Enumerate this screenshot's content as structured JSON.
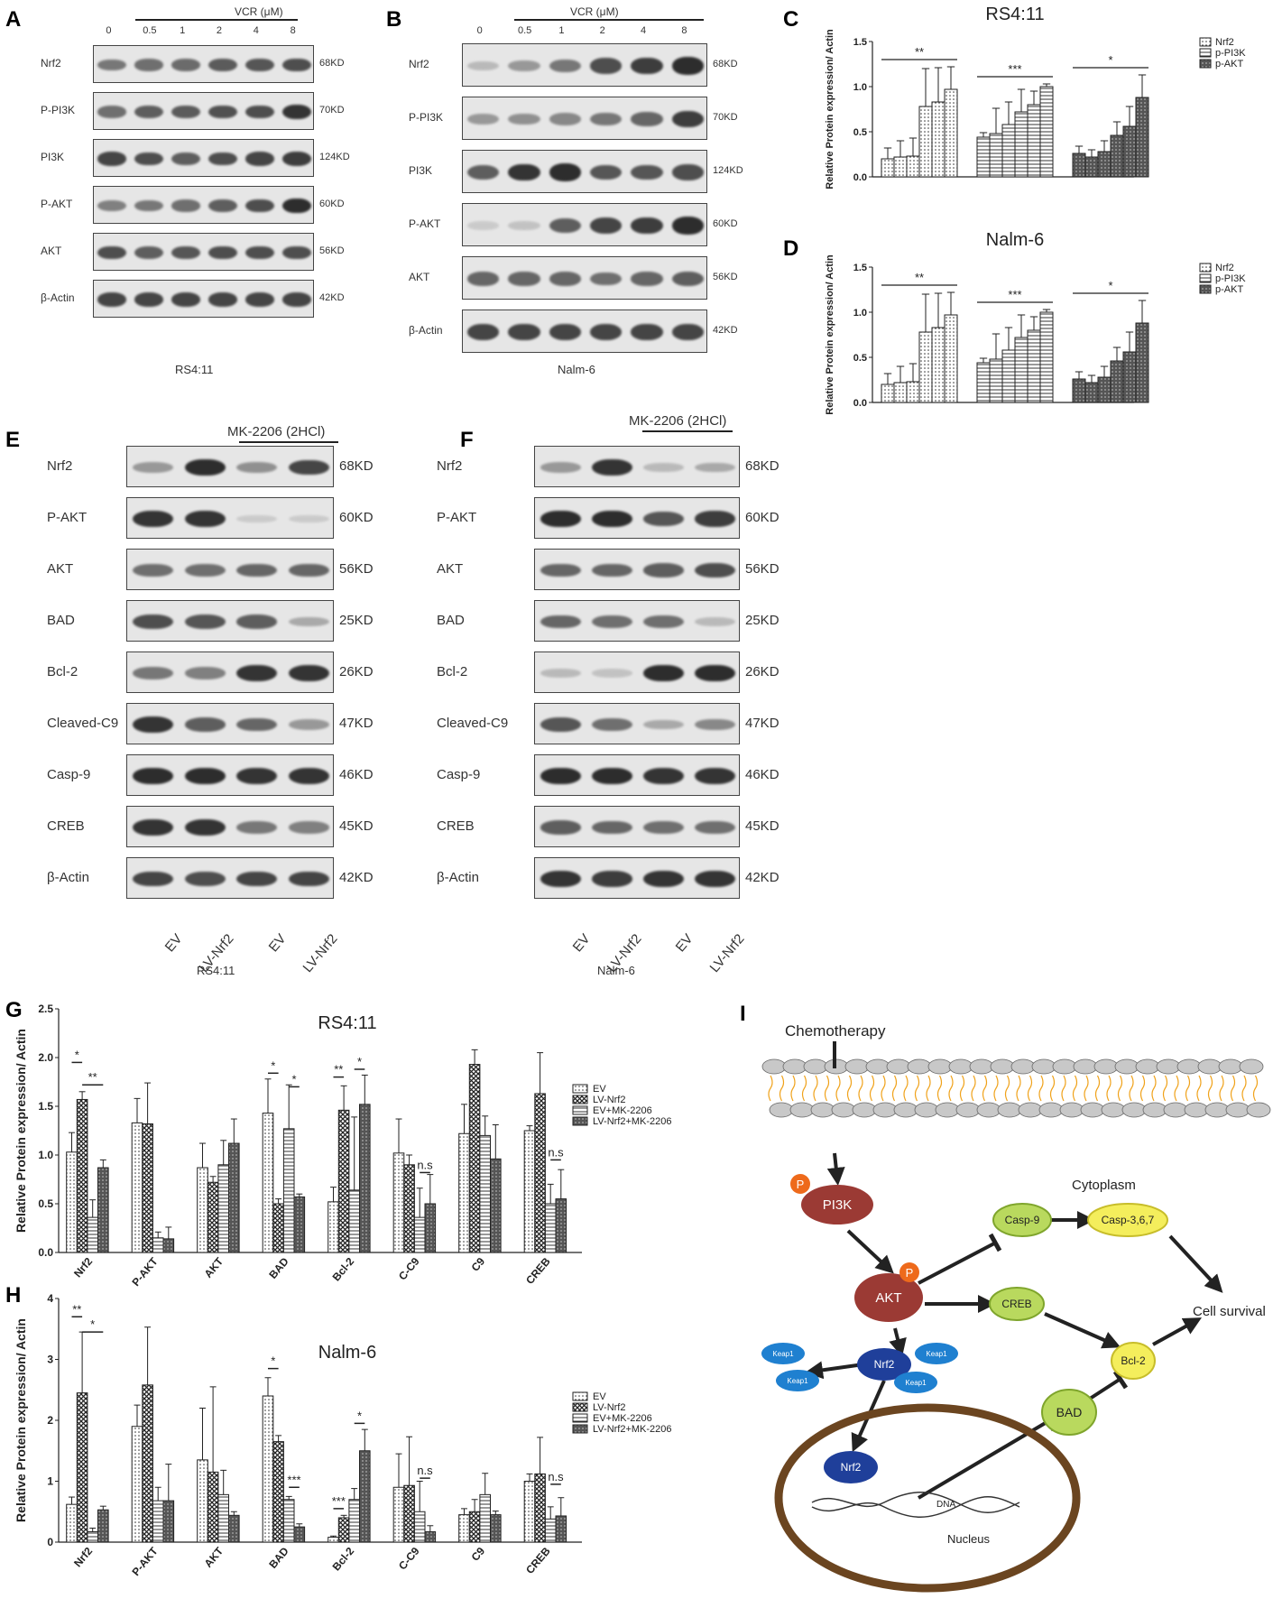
{
  "panels": {
    "A": {
      "letter": "A",
      "header": "VCR (μM)",
      "lanes": [
        "0",
        "0.5",
        "1",
        "2",
        "4",
        "8"
      ],
      "cell_line": "RS4:11",
      "rows": [
        {
          "protein": "Nrf2",
          "kd": "68KD",
          "intensity": [
            0.55,
            0.6,
            0.62,
            0.72,
            0.75,
            0.8
          ]
        },
        {
          "protein": "P-PI3K",
          "kd": "70KD",
          "intensity": [
            0.6,
            0.7,
            0.72,
            0.78,
            0.8,
            0.95
          ]
        },
        {
          "protein": "PI3K",
          "kd": "124KD",
          "intensity": [
            0.85,
            0.8,
            0.7,
            0.8,
            0.85,
            0.9
          ]
        },
        {
          "protein": "P-AKT",
          "kd": "60KD",
          "intensity": [
            0.5,
            0.55,
            0.6,
            0.7,
            0.8,
            1.0
          ]
        },
        {
          "protein": "AKT",
          "kd": "56KD",
          "intensity": [
            0.8,
            0.7,
            0.75,
            0.8,
            0.8,
            0.8
          ]
        },
        {
          "protein": "β-Actin",
          "kd": "42KD",
          "intensity": [
            0.85,
            0.85,
            0.85,
            0.85,
            0.85,
            0.85
          ]
        }
      ]
    },
    "B": {
      "letter": "B",
      "header": "VCR (μM)",
      "lanes": [
        "0",
        "0.5",
        "1",
        "2",
        "4",
        "8"
      ],
      "cell_line": "Nalm-6",
      "rows": [
        {
          "protein": "Nrf2",
          "kd": "68KD",
          "intensity": [
            0.15,
            0.35,
            0.55,
            0.8,
            0.9,
            1.0
          ]
        },
        {
          "protein": "P-PI3K",
          "kd": "70KD",
          "intensity": [
            0.35,
            0.4,
            0.45,
            0.55,
            0.65,
            0.9
          ]
        },
        {
          "protein": "PI3K",
          "kd": "124KD",
          "intensity": [
            0.7,
            0.95,
            1.0,
            0.75,
            0.75,
            0.8
          ]
        },
        {
          "protein": "P-AKT",
          "kd": "60KD",
          "intensity": [
            0.05,
            0.1,
            0.7,
            0.85,
            0.9,
            1.0
          ]
        },
        {
          "protein": "AKT",
          "kd": "56KD",
          "intensity": [
            0.65,
            0.65,
            0.65,
            0.6,
            0.65,
            0.7
          ]
        },
        {
          "protein": "β-Actin",
          "kd": "42KD",
          "intensity": [
            0.85,
            0.85,
            0.85,
            0.85,
            0.85,
            0.85
          ]
        }
      ]
    },
    "E": {
      "letter": "E",
      "header": "MK-2206 (2HCl)",
      "lanes": [
        "EV",
        "LV-Nrf2",
        "EV",
        "LV-Nrf2"
      ],
      "cell_line": "RS4:11",
      "rows": [
        {
          "protein": "Nrf2",
          "kd": "68KD",
          "intensity": [
            0.35,
            1.0,
            0.4,
            0.85
          ]
        },
        {
          "protein": "P-AKT",
          "kd": "60KD",
          "intensity": [
            0.95,
            0.95,
            0.05,
            0.05
          ]
        },
        {
          "protein": "AKT",
          "kd": "56KD",
          "intensity": [
            0.6,
            0.6,
            0.65,
            0.65
          ]
        },
        {
          "protein": "BAD",
          "kd": "25KD",
          "intensity": [
            0.8,
            0.75,
            0.7,
            0.25
          ]
        },
        {
          "protein": "Bcl-2",
          "kd": "26KD",
          "intensity": [
            0.55,
            0.5,
            0.95,
            0.95
          ]
        },
        {
          "protein": "Cleaved-C9",
          "kd": "47KD",
          "intensity": [
            0.95,
            0.7,
            0.65,
            0.35
          ]
        },
        {
          "protein": "Casp-9",
          "kd": "46KD",
          "intensity": [
            1.0,
            1.0,
            0.95,
            0.95
          ]
        },
        {
          "protein": "CREB",
          "kd": "45KD",
          "intensity": [
            0.95,
            0.95,
            0.55,
            0.5
          ]
        },
        {
          "protein": "β-Actin",
          "kd": "42KD",
          "intensity": [
            0.85,
            0.8,
            0.85,
            0.85
          ]
        }
      ]
    },
    "F": {
      "letter": "F",
      "header": "MK-2206 (2HCl)",
      "lanes": [
        "EV",
        "LV-Nrf2",
        "EV",
        "LV-Nrf2"
      ],
      "cell_line": "Nalm-6",
      "rows": [
        {
          "protein": "Nrf2",
          "kd": "68KD",
          "intensity": [
            0.35,
            0.95,
            0.15,
            0.25
          ]
        },
        {
          "protein": "P-AKT",
          "kd": "60KD",
          "intensity": [
            1.0,
            1.0,
            0.75,
            0.9
          ]
        },
        {
          "protein": "AKT",
          "kd": "56KD",
          "intensity": [
            0.65,
            0.65,
            0.7,
            0.8
          ]
        },
        {
          "protein": "BAD",
          "kd": "25KD",
          "intensity": [
            0.65,
            0.6,
            0.6,
            0.15
          ]
        },
        {
          "protein": "Bcl-2",
          "kd": "26KD",
          "intensity": [
            0.15,
            0.1,
            1.0,
            1.0
          ]
        },
        {
          "protein": "Cleaved-C9",
          "kd": "47KD",
          "intensity": [
            0.75,
            0.6,
            0.25,
            0.45
          ]
        },
        {
          "protein": "Casp-9",
          "kd": "46KD",
          "intensity": [
            1.0,
            1.0,
            0.95,
            0.95
          ]
        },
        {
          "protein": "CREB",
          "kd": "45KD",
          "intensity": [
            0.7,
            0.65,
            0.6,
            0.6
          ]
        },
        {
          "protein": "β-Actin",
          "kd": "42KD",
          "intensity": [
            0.95,
            0.9,
            0.95,
            0.95
          ]
        }
      ]
    }
  },
  "chart_data": [
    {
      "id": "C",
      "letter": "C",
      "type": "bar",
      "title": "RS4:11",
      "ylabel": "Relative Protein expression/ Actin",
      "ylim": [
        0,
        1.5
      ],
      "yticks": [
        "0.0",
        "0.5",
        "1.0",
        "1.5"
      ],
      "legend": [
        "Nrf2",
        "p-PI3K",
        "p-AKT"
      ],
      "groups": [
        {
          "name": "Nrf2",
          "pattern": "dots",
          "values": [
            0.2,
            0.22,
            0.23,
            0.78,
            0.83,
            0.97
          ],
          "errors": [
            0.12,
            0.18,
            0.2,
            0.42,
            0.38,
            0.25
          ],
          "sig": "**"
        },
        {
          "name": "p-PI3K",
          "pattern": "hlines",
          "values": [
            0.44,
            0.48,
            0.58,
            0.72,
            0.8,
            1.0
          ],
          "errors": [
            0.05,
            0.28,
            0.25,
            0.25,
            0.15,
            0.03
          ],
          "sig": "***"
        },
        {
          "name": "p-AKT",
          "pattern": "dark",
          "values": [
            0.26,
            0.22,
            0.28,
            0.46,
            0.56,
            0.88
          ],
          "errors": [
            0.08,
            0.08,
            0.12,
            0.15,
            0.22,
            0.25
          ],
          "sig": "*"
        }
      ]
    },
    {
      "id": "D",
      "letter": "D",
      "type": "bar",
      "title": "Nalm-6",
      "ylabel": "Relative Protein expression/ Actin",
      "ylim": [
        0,
        1.5
      ],
      "yticks": [
        "0.0",
        "0.5",
        "1.0",
        "1.5"
      ],
      "legend": [
        "Nrf2",
        "p-PI3K",
        "p-AKT"
      ],
      "groups": [
        {
          "name": "Nrf2",
          "pattern": "dots",
          "values": [
            0.2,
            0.22,
            0.23,
            0.78,
            0.83,
            0.97
          ],
          "errors": [
            0.12,
            0.18,
            0.2,
            0.42,
            0.38,
            0.25
          ],
          "sig": "**"
        },
        {
          "name": "p-PI3K",
          "pattern": "hlines",
          "values": [
            0.44,
            0.48,
            0.58,
            0.72,
            0.8,
            1.0
          ],
          "errors": [
            0.05,
            0.28,
            0.25,
            0.25,
            0.15,
            0.03
          ],
          "sig": "***"
        },
        {
          "name": "p-AKT",
          "pattern": "dark",
          "values": [
            0.26,
            0.22,
            0.28,
            0.46,
            0.56,
            0.88
          ],
          "errors": [
            0.08,
            0.08,
            0.12,
            0.15,
            0.22,
            0.25
          ],
          "sig": "*"
        }
      ]
    },
    {
      "id": "G",
      "letter": "G",
      "type": "bar",
      "title": "RS4:11",
      "ylabel": "Relative Protein expression/ Actin",
      "ylim": [
        0,
        2.5
      ],
      "yticks": [
        "0.0",
        "0.5",
        "1.0",
        "1.5",
        "2.0",
        "2.5"
      ],
      "categories": [
        "Nrf2",
        "P-AKT",
        "AKT",
        "BAD",
        "Bcl-2",
        "C-C9",
        "C9",
        "CREB"
      ],
      "series": [
        {
          "name": "EV",
          "pattern": "dots",
          "values": [
            1.03,
            1.33,
            0.87,
            1.43,
            0.52,
            1.02,
            1.22,
            1.25
          ],
          "errors": [
            0.2,
            0.25,
            0.25,
            0.35,
            0.15,
            0.35,
            0.3,
            0.05
          ]
        },
        {
          "name": "LV-Nrf2",
          "pattern": "cross",
          "values": [
            1.57,
            1.32,
            0.72,
            0.5,
            1.46,
            0.9,
            1.93,
            1.63
          ],
          "errors": [
            0.08,
            0.42,
            0.06,
            0.05,
            0.25,
            0.1,
            0.15,
            0.42
          ]
        },
        {
          "name": "EV+MK-2206",
          "pattern": "hlines",
          "values": [
            0.36,
            0.15,
            0.9,
            1.27,
            0.64,
            0.36,
            1.2,
            0.5
          ],
          "errors": [
            0.18,
            0.06,
            0.25,
            0.45,
            0.75,
            0.3,
            0.2,
            0.2
          ]
        },
        {
          "name": "LV-Nrf2+MK-2206",
          "pattern": "dark",
          "values": [
            0.87,
            0.14,
            1.12,
            0.57,
            1.52,
            0.5,
            0.96,
            0.55
          ],
          "errors": [
            0.08,
            0.12,
            0.25,
            0.03,
            0.3,
            0.3,
            0.35,
            0.3
          ]
        }
      ],
      "annotations": [
        {
          "cat": 0,
          "from": 0,
          "to": 1,
          "level": 1.95,
          "text": "*"
        },
        {
          "cat": 0,
          "from": 1,
          "to": 3,
          "level": 1.72,
          "text": "**"
        },
        {
          "cat": 3,
          "from": 0,
          "to": 1,
          "level": 1.84,
          "text": "*"
        },
        {
          "cat": 3,
          "from": 2,
          "to": 3,
          "level": 1.7,
          "text": "*"
        },
        {
          "cat": 4,
          "from": 0,
          "to": 1,
          "level": 1.8,
          "text": "**"
        },
        {
          "cat": 4,
          "from": 2,
          "to": 3,
          "level": 1.88,
          "text": "*"
        },
        {
          "cat": 5,
          "from": 2,
          "to": 3,
          "level": 0.82,
          "text": "n.s"
        },
        {
          "cat": 7,
          "from": 2,
          "to": 3,
          "level": 0.95,
          "text": "n.s"
        }
      ]
    },
    {
      "id": "H",
      "letter": "H",
      "type": "bar",
      "title": "Nalm-6",
      "ylabel": "Relative Protein expression/ Actin",
      "ylim": [
        0,
        4
      ],
      "yticks": [
        "0",
        "1",
        "2",
        "3",
        "4"
      ],
      "categories": [
        "Nrf2",
        "P-AKT",
        "AKT",
        "BAD",
        "Bcl-2",
        "C-C9",
        "C9",
        "CREB"
      ],
      "series": [
        {
          "name": "EV",
          "pattern": "dots",
          "values": [
            0.62,
            1.9,
            1.35,
            2.4,
            0.08,
            0.9,
            0.45,
            1.0
          ],
          "errors": [
            0.12,
            0.35,
            0.85,
            0.3,
            0.02,
            0.55,
            0.1,
            0.12
          ]
        },
        {
          "name": "LV-Nrf2",
          "pattern": "cross",
          "values": [
            2.45,
            2.58,
            1.15,
            1.65,
            0.4,
            0.93,
            0.5,
            1.12
          ],
          "errors": [
            1.0,
            0.95,
            1.4,
            0.1,
            0.04,
            0.8,
            0.2,
            0.6
          ]
        },
        {
          "name": "EV+MK-2206",
          "pattern": "hlines",
          "values": [
            0.17,
            0.68,
            0.78,
            0.7,
            0.7,
            0.5,
            0.78,
            0.38
          ],
          "errors": [
            0.06,
            0.22,
            0.4,
            0.05,
            0.18,
            0.5,
            0.35,
            0.2
          ]
        },
        {
          "name": "LV-Nrf2+MK-2206",
          "pattern": "dark",
          "values": [
            0.53,
            0.68,
            0.44,
            0.25,
            1.5,
            0.17,
            0.45,
            0.43
          ],
          "errors": [
            0.06,
            0.6,
            0.06,
            0.05,
            0.35,
            0.1,
            0.06,
            0.3
          ]
        }
      ],
      "annotations": [
        {
          "cat": 0,
          "from": 0,
          "to": 1,
          "level": 3.7,
          "text": "**"
        },
        {
          "cat": 0,
          "from": 1,
          "to": 3,
          "level": 3.45,
          "text": "*"
        },
        {
          "cat": 3,
          "from": 0,
          "to": 1,
          "level": 2.85,
          "text": "*"
        },
        {
          "cat": 3,
          "from": 2,
          "to": 3,
          "level": 0.9,
          "text": "***"
        },
        {
          "cat": 4,
          "from": 0,
          "to": 1,
          "level": 0.55,
          "text": "***"
        },
        {
          "cat": 4,
          "from": 2,
          "to": 3,
          "level": 1.95,
          "text": "*"
        },
        {
          "cat": 5,
          "from": 2,
          "to": 3,
          "level": 1.05,
          "text": "n.s"
        },
        {
          "cat": 7,
          "from": 2,
          "to": 3,
          "level": 0.95,
          "text": "n.s"
        }
      ]
    }
  ],
  "diagram": {
    "letter": "I",
    "chemotherapy": "Chemotherapy",
    "cytoplasm": "Cytoplasm",
    "pi3k": "PI3K",
    "p": "P",
    "akt": "AKT",
    "casp9": "Casp-9",
    "casp367": "Casp-3,6,7",
    "creb": "CREB",
    "cell_survival": "Cell survival",
    "bcl2": "Bcl-2",
    "bad": "BAD",
    "nrf2": "Nrf2",
    "keap1": "Keap1",
    "dna": "DNA",
    "nucleus": "Nucleus"
  }
}
